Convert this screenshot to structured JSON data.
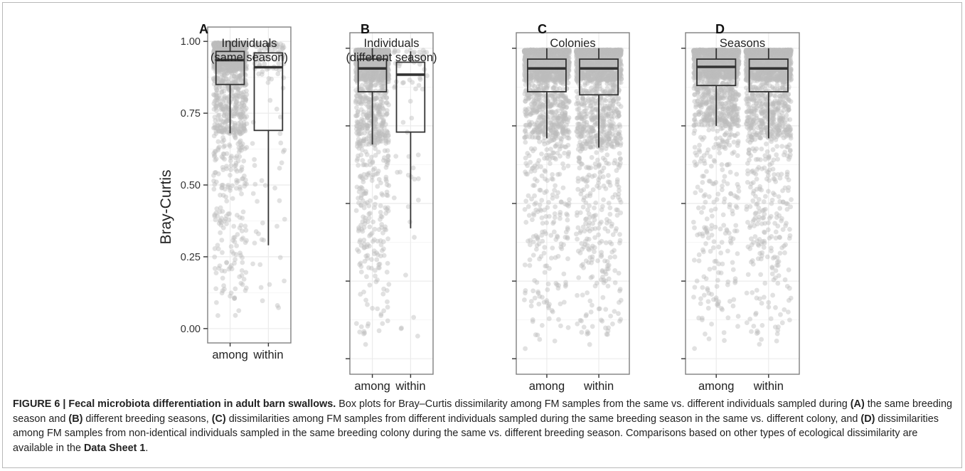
{
  "chart_data": {
    "type": "box_with_jitter",
    "ylabel": "Bray-Curtis",
    "ylim": [
      0,
      1
    ],
    "y_ticks": [
      "0.00",
      "0.25",
      "0.50",
      "0.75",
      "1.00"
    ],
    "panels": [
      {
        "letter": "A",
        "title_lines": [
          "Individuals",
          "(same season)"
        ],
        "categories": [
          "among",
          "within"
        ],
        "boxes": [
          {
            "name": "among",
            "whisker_low": 0.68,
            "q1": 0.85,
            "median": 0.935,
            "q3": 0.965,
            "whisker_high": 1.0,
            "n_points": 1400
          },
          {
            "name": "within",
            "whisker_low": 0.29,
            "q1": 0.69,
            "median": 0.91,
            "q3": 0.96,
            "whisker_high": 0.995,
            "n_points": 110
          }
        ]
      },
      {
        "letter": "B",
        "title_lines": [
          "Individuals",
          "(different season)"
        ],
        "categories": [
          "among",
          "within"
        ],
        "boxes": [
          {
            "name": "among",
            "whisker_low": 0.69,
            "q1": 0.86,
            "median": 0.935,
            "q3": 0.965,
            "whisker_high": 1.0,
            "n_points": 1400
          },
          {
            "name": "within",
            "whisker_low": 0.42,
            "q1": 0.73,
            "median": 0.915,
            "q3": 0.955,
            "whisker_high": 0.99,
            "n_points": 60
          }
        ]
      },
      {
        "letter": "C",
        "title_lines": [
          "Colonies"
        ],
        "categories": [
          "among",
          "within"
        ],
        "boxes": [
          {
            "name": "among",
            "whisker_low": 0.71,
            "q1": 0.86,
            "median": 0.935,
            "q3": 0.965,
            "whisker_high": 1.0,
            "n_points": 1800
          },
          {
            "name": "within",
            "whisker_low": 0.68,
            "q1": 0.85,
            "median": 0.935,
            "q3": 0.965,
            "whisker_high": 1.0,
            "n_points": 1800
          }
        ]
      },
      {
        "letter": "D",
        "title_lines": [
          "Seasons"
        ],
        "categories": [
          "among",
          "within"
        ],
        "boxes": [
          {
            "name": "among",
            "whisker_low": 0.75,
            "q1": 0.88,
            "median": 0.94,
            "q3": 0.965,
            "whisker_high": 1.0,
            "n_points": 1800
          },
          {
            "name": "within",
            "whisker_low": 0.71,
            "q1": 0.86,
            "median": 0.935,
            "q3": 0.965,
            "whisker_high": 1.0,
            "n_points": 1800
          }
        ]
      }
    ],
    "colors": {
      "points": "#bdbdbd",
      "box_fill_among": "#c8c8c8",
      "box_stroke": "#333333",
      "grid": "#ebebeb",
      "panel_border": "#7f7f7f"
    }
  },
  "caption": {
    "figure_label": "FIGURE 6 | Fecal microbiota differentiation in adult barn swallows.",
    "p1": " Box plots for Bray–Curtis dissimilarity among FM samples from the same vs. different individuals sampled during ",
    "bA": "(A)",
    "p2": " the same breeding season and ",
    "bB": "(B)",
    "p3": " different breeding seasons, ",
    "bC": "(C)",
    "p4": " dissimilarities among FM samples from different individuals sampled during the same breeding season in the same vs. different colony, and ",
    "bD": "(D)",
    "p5": " dissimilarities among FM samples from non-identical individuals sampled in the same breeding colony during the same vs. different breeding season. Comparisons based on other types of ecological dissimilarity are available in the ",
    "bDS": "Data Sheet 1",
    "p6": "."
  }
}
